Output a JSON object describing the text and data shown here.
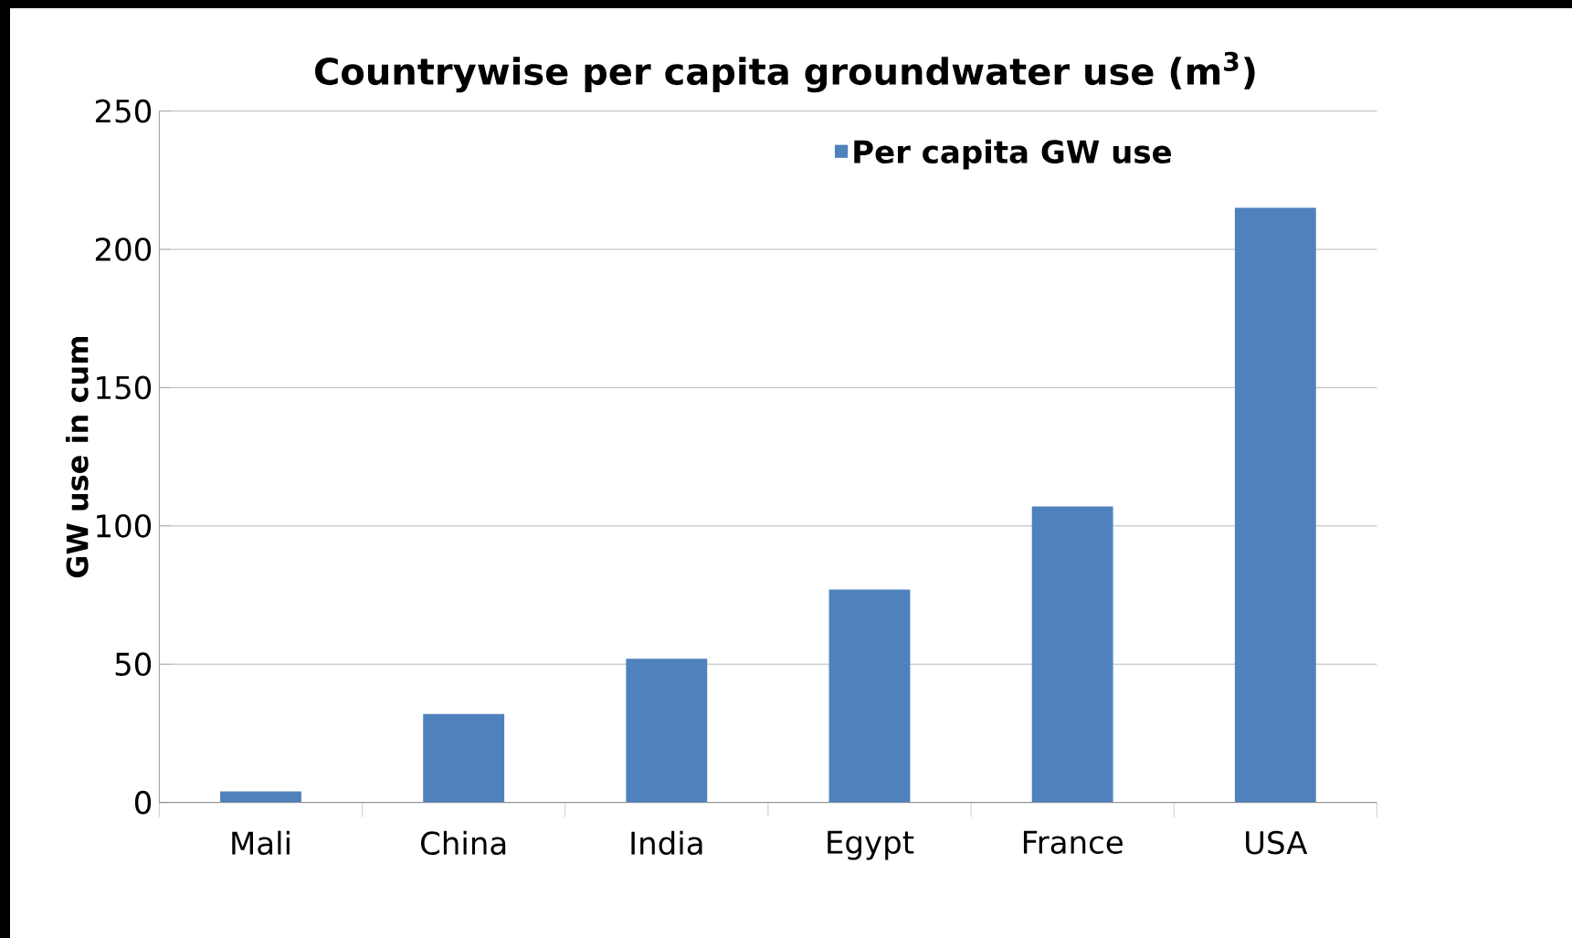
{
  "chart_data": {
    "type": "bar",
    "title": "Countrywise per capita groundwater use (m$^{3}$)",
    "ylabel": "GW use in cum",
    "categories": [
      "Mali",
      "China",
      "India",
      "Egypt",
      "France",
      "USA"
    ],
    "series": [
      {
        "name": "Per capita GW use",
        "color": "#4f81bd",
        "values": [
          4,
          32,
          52,
          77,
          107,
          215
        ]
      }
    ],
    "ylim": [
      0,
      250
    ],
    "yticks": [
      0,
      50,
      100,
      150,
      200,
      250
    ],
    "grid": "y",
    "legend": "top right"
  }
}
